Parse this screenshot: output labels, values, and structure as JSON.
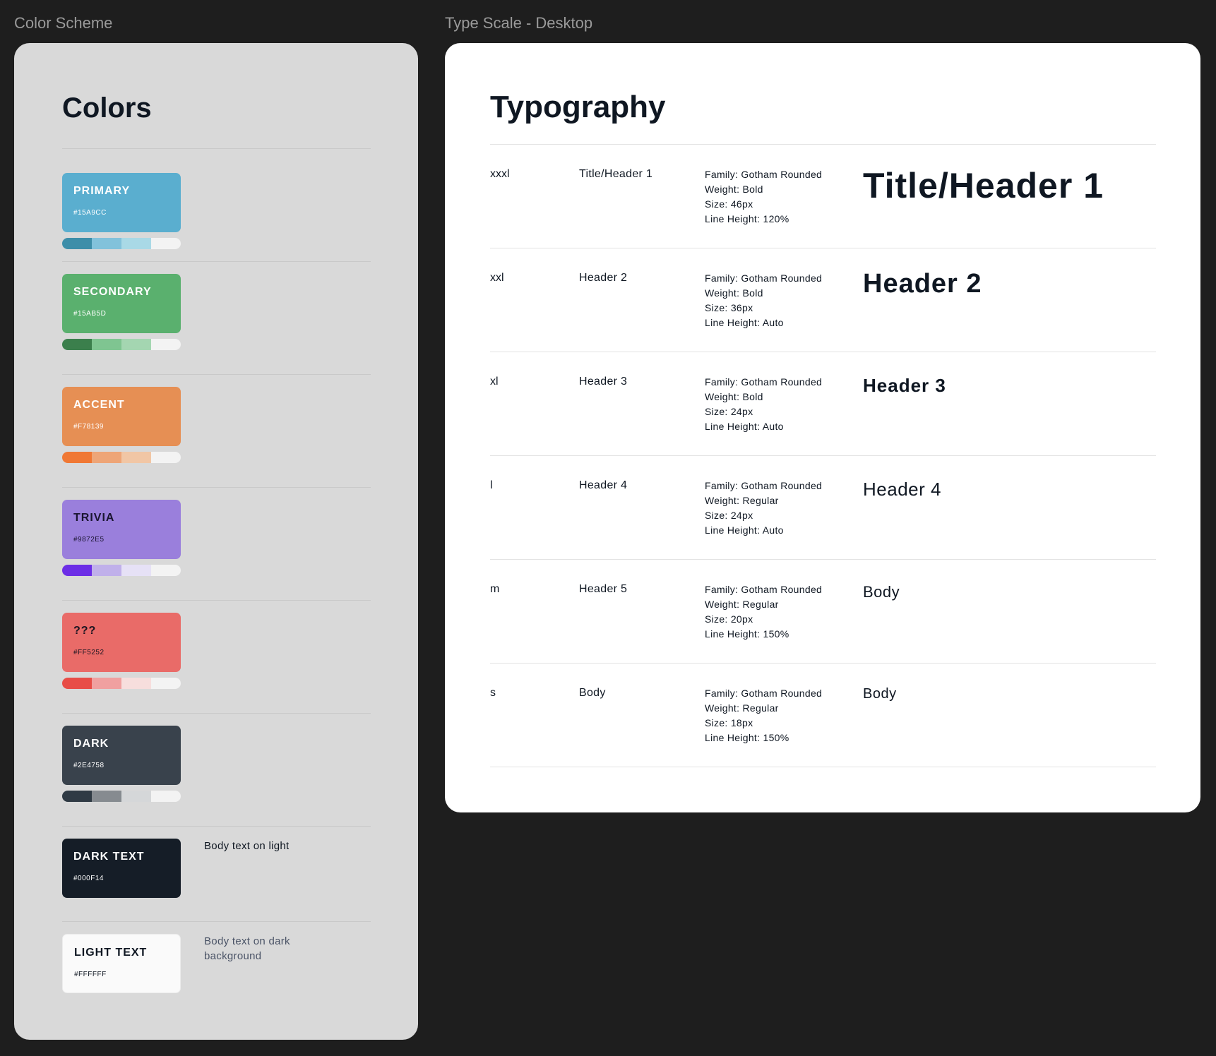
{
  "frames": {
    "colors_label": "Color Scheme",
    "type_label": "Type Scale - Desktop"
  },
  "colors": {
    "title": "Colors",
    "swatches": [
      {
        "name": "PRIMARY",
        "hex": "#15A9CC",
        "bg": "#5aaecf",
        "fg": "#ffffff",
        "tints": [
          "#3d8ea9",
          "#82c2db",
          "#a9d9e6",
          "#f3f3f3"
        ]
      },
      {
        "name": "SECONDARY",
        "hex": "#15AB5D",
        "bg": "#5ab06e",
        "fg": "#ffffff",
        "tints": [
          "#3b7f4c",
          "#7fc591",
          "#a4d6b1",
          "#f3f3f3"
        ]
      },
      {
        "name": "ACCENT",
        "hex": "#F78139",
        "bg": "#e68f54",
        "fg": "#ffffff",
        "tints": [
          "#f07834",
          "#eea577",
          "#f1c6a5",
          "#f3f3f3"
        ]
      },
      {
        "name": "TRIVIA",
        "hex": "#9872E5",
        "bg": "#9a7fdc",
        "fg": "#1a1530",
        "tints": [
          "#6c2ee6",
          "#c0b0ea",
          "#e6e1f6",
          "#f3f3f3"
        ]
      },
      {
        "name": "???",
        "hex": "#FF5252",
        "bg": "#e96b68",
        "fg": "#1a1420",
        "tints": [
          "#e84d47",
          "#f0a0a0",
          "#f7dedd",
          "#f3f3f3"
        ]
      },
      {
        "name": "DARK",
        "hex": "#2E4758",
        "bg": "#39424c",
        "fg": "#ffffff",
        "tints": [
          "#2f3a44",
          "#868b90",
          "#d5d7d9",
          "#f3f3f3"
        ]
      },
      {
        "name": "DARK TEXT",
        "hex": "#000F14",
        "bg": "#151d27",
        "fg": "#ffffff",
        "note": "Body text on light",
        "note_color": "#0f1722"
      },
      {
        "name": "LIGHT TEXT",
        "hex": "#FFFFFF",
        "bg": "#fafafa",
        "fg": "#0f1722",
        "note": "Body text on dark background",
        "note_color": "#4a5366"
      }
    ]
  },
  "typography": {
    "title": "Typography",
    "rows": [
      {
        "token": "xxxl",
        "name": "Title/Header 1",
        "family": "Family: Gotham Rounded",
        "weight": "Weight: Bold",
        "size": "Size: 46px",
        "line_height": "Line Height: 120%",
        "preview": "Title/Header 1"
      },
      {
        "token": "xxl",
        "name": "Header 2",
        "family": "Family: Gotham Rounded",
        "weight": "Weight: Bold",
        "size": "Size: 36px",
        "line_height": "Line Height: Auto",
        "preview": "Header 2"
      },
      {
        "token": "xl",
        "name": "Header 3",
        "family": "Family: Gotham Rounded",
        "weight": "Weight: Bold",
        "size": "Size: 24px",
        "line_height": "Line Height: Auto",
        "preview": "Header 3"
      },
      {
        "token": "l",
        "name": "Header 4",
        "family": "Family: Gotham Rounded",
        "weight": "Weight: Regular",
        "size": "Size: 24px",
        "line_height": "Line Height: Auto",
        "preview": "Header 4"
      },
      {
        "token": "m",
        "name": "Header 5",
        "family": "Family: Gotham Rounded",
        "weight": "Weight: Regular",
        "size": "Size: 20px",
        "line_height": "Line Height: 150%",
        "preview": "Body"
      },
      {
        "token": "s",
        "name": "Body",
        "family": "Family: Gotham Rounded",
        "weight": "Weight: Regular",
        "size": "Size: 18px",
        "line_height": "Line Height: 150%",
        "preview": "Body"
      }
    ]
  }
}
